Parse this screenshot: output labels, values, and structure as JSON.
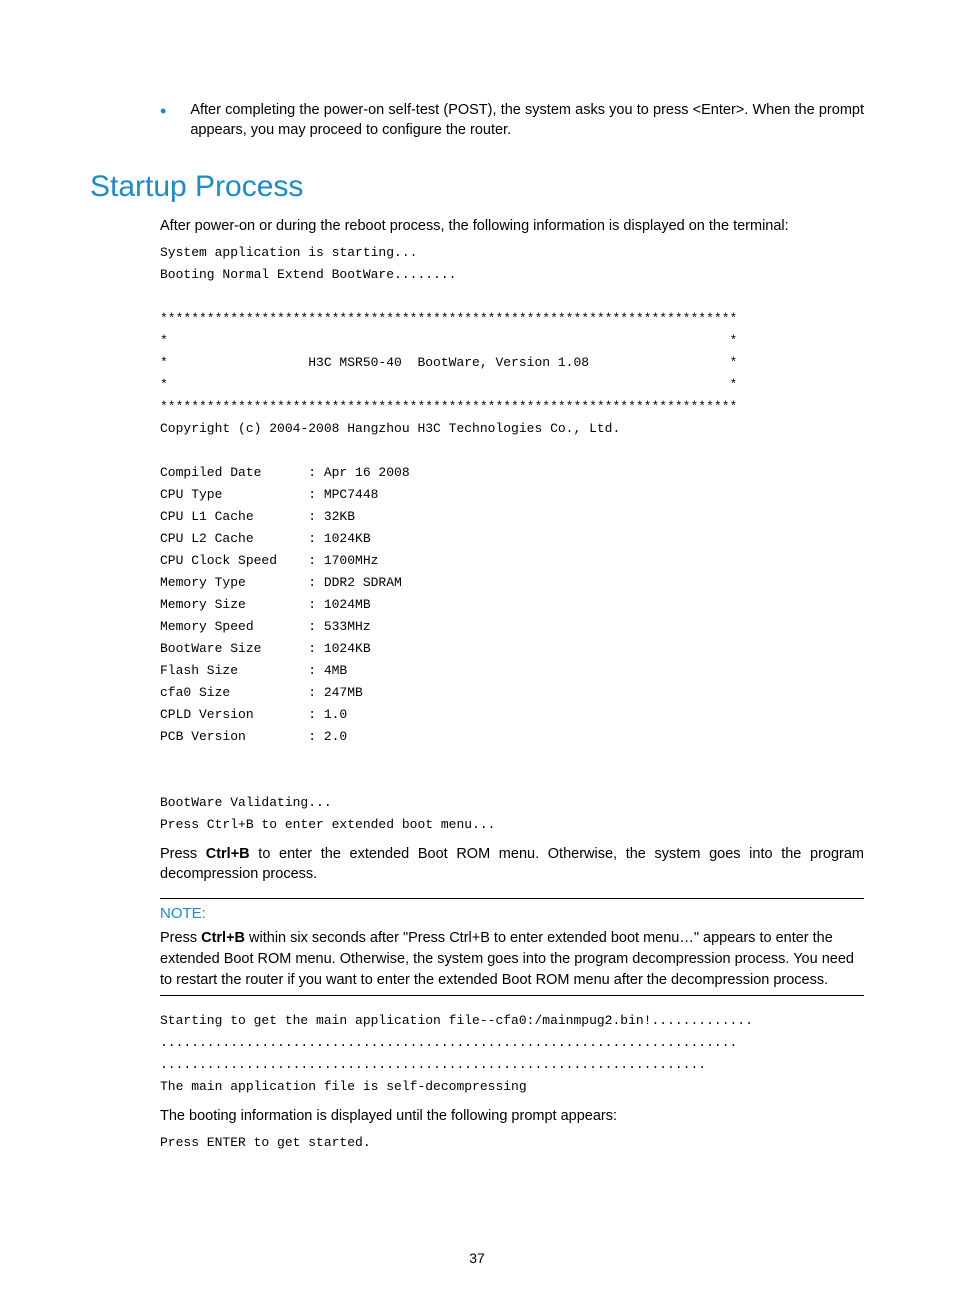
{
  "colors": {
    "accent": "#1a8cc9",
    "text": "#000000",
    "background": "#ffffff"
  },
  "bullet": {
    "text": "After completing the power-on self-test (POST), the system asks you to press <Enter>. When the prompt appears, you may proceed to configure the router."
  },
  "heading": "Startup Process",
  "intro": "After power-on or during the reboot process, the following information is displayed on the terminal:",
  "terminal1": "System application is starting...\nBooting Normal Extend BootWare........\n\n**************************************************************************\n*                                                                        *\n*                  H3C MSR50-40  BootWare, Version 1.08                  *\n*                                                                        *\n**************************************************************************\nCopyright (c) 2004-2008 Hangzhou H3C Technologies Co., Ltd.\n\nCompiled Date      : Apr 16 2008\nCPU Type           : MPC7448\nCPU L1 Cache       : 32KB\nCPU L2 Cache       : 1024KB\nCPU Clock Speed    : 1700MHz\nMemory Type        : DDR2 SDRAM\nMemory Size        : 1024MB\nMemory Speed       : 533MHz\nBootWare Size      : 1024KB\nFlash Size         : 4MB\ncfa0 Size          : 247MB\nCPLD Version       : 1.0\nPCB Version        : 2.0\n\n\nBootWare Validating...\nPress Ctrl+B to enter extended boot menu...",
  "press_pre": "Press ",
  "press_key": "Ctrl+B",
  "press_post": " to enter the extended Boot ROM menu. Otherwise, the system goes into the program decompression process.",
  "note": {
    "label": "NOTE:",
    "pre": "Press ",
    "key": "Ctrl+B",
    "post": " within six seconds after \"Press Ctrl+B to enter extended boot menu…\" appears to enter the extended Boot ROM menu. Otherwise, the system goes into the program decompression process. You need to restart the router if you want to enter the extended Boot ROM menu after the decompression process."
  },
  "terminal2": "Starting to get the main application file--cfa0:/mainmpug2.bin!.............\n..........................................................................\n......................................................................\nThe main application file is self-decompressing",
  "booting_info": "The booting information is displayed until the following prompt appears:",
  "terminal3": "Press ENTER to get started.",
  "page_number": "37"
}
